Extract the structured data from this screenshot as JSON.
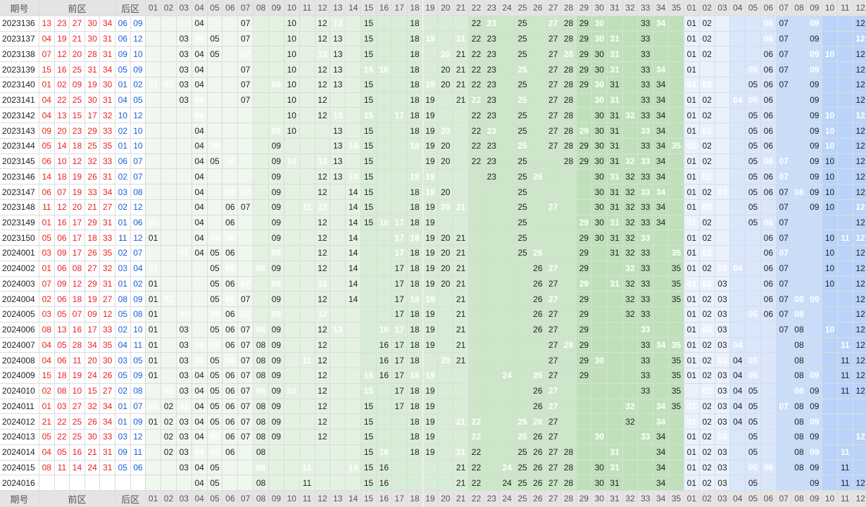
{
  "header": {
    "period": "期号",
    "front": "前区",
    "back": "后区"
  },
  "front_cols": [
    "01",
    "02",
    "03",
    "04",
    "05",
    "06",
    "07",
    "08",
    "09",
    "10",
    "11",
    "12",
    "13",
    "14",
    "15",
    "16",
    "17",
    "18",
    "19",
    "20",
    "21",
    "22",
    "23",
    "24",
    "25",
    "26",
    "27",
    "28",
    "29",
    "30",
    "31",
    "32",
    "33",
    "34",
    "35"
  ],
  "back_cols": [
    "01",
    "02",
    "03",
    "04",
    "05",
    "06",
    "07",
    "08",
    "09",
    "10",
    "11",
    "12"
  ],
  "rows": [
    {
      "p": "2023136",
      "f": [
        "13",
        "23",
        "27",
        "30",
        "34"
      ],
      "b": [
        "06",
        "09"
      ],
      "fs": [
        4,
        7,
        10,
        12,
        13,
        15,
        18,
        22,
        23,
        25,
        27,
        28,
        29,
        33
      ],
      "bs": [
        1,
        2,
        6,
        7,
        12
      ]
    },
    {
      "p": "2023137",
      "f": [
        "04",
        "19",
        "21",
        "30",
        "31"
      ],
      "b": [
        "06",
        "12"
      ],
      "fs": [
        3,
        4,
        5,
        7,
        10,
        12,
        13,
        15,
        18,
        22,
        23,
        25,
        27,
        28,
        29,
        30,
        33
      ],
      "bs": [
        1,
        2,
        6,
        7,
        9,
        12
      ]
    },
    {
      "p": "2023138",
      "f": [
        "07",
        "12",
        "20",
        "28",
        "31"
      ],
      "b": [
        "09",
        "10"
      ],
      "fs": [
        3,
        4,
        5,
        7,
        10,
        12,
        13,
        15,
        18,
        21,
        22,
        23,
        25,
        27,
        28,
        29,
        30,
        33
      ],
      "bs": [
        1,
        2,
        6,
        7,
        9,
        12
      ]
    },
    {
      "p": "2023139",
      "f": [
        "15",
        "16",
        "25",
        "31",
        "34"
      ],
      "b": [
        "05",
        "09"
      ],
      "fs": [
        3,
        4,
        7,
        10,
        12,
        13,
        15,
        18,
        20,
        21,
        22,
        23,
        25,
        27,
        28,
        29,
        30,
        31,
        33
      ],
      "bs": [
        1,
        6,
        7,
        9,
        12
      ]
    },
    {
      "p": "2023140",
      "f": [
        "01",
        "02",
        "09",
        "19",
        "30"
      ],
      "b": [
        "01",
        "02"
      ],
      "fs": [
        3,
        4,
        7,
        10,
        12,
        13,
        15,
        18,
        20,
        21,
        22,
        23,
        25,
        27,
        28,
        29,
        30,
        31,
        33,
        34
      ],
      "bs": [
        1,
        5,
        6,
        7,
        9,
        12
      ]
    },
    {
      "p": "2023141",
      "f": [
        "04",
        "22",
        "25",
        "30",
        "31"
      ],
      "b": [
        "04",
        "05"
      ],
      "fs": [
        3,
        4,
        7,
        10,
        12,
        15,
        18,
        19,
        21,
        22,
        23,
        25,
        27,
        28,
        30,
        31,
        33,
        34
      ],
      "bs": [
        1,
        2,
        5,
        6,
        9,
        12
      ]
    },
    {
      "p": "2023142",
      "f": [
        "04",
        "13",
        "15",
        "17",
        "32"
      ],
      "b": [
        "10",
        "12"
      ],
      "fs": [
        4,
        10,
        12,
        15,
        18,
        19,
        22,
        23,
        25,
        27,
        28,
        30,
        31,
        33,
        34
      ],
      "bs": [
        1,
        2,
        5,
        6,
        9,
        12
      ]
    },
    {
      "p": "2023143",
      "f": [
        "09",
        "20",
        "23",
        "29",
        "33"
      ],
      "b": [
        "02",
        "10"
      ],
      "fs": [
        4,
        10,
        13,
        15,
        18,
        19,
        22,
        25,
        27,
        28,
        30,
        31,
        33,
        34
      ],
      "bs": [
        1,
        5,
        6,
        9,
        10,
        12
      ]
    },
    {
      "p": "2023144",
      "f": [
        "05",
        "14",
        "18",
        "25",
        "35"
      ],
      "b": [
        "01",
        "10"
      ],
      "fs": [
        4,
        9,
        13,
        15,
        19,
        20,
        22,
        23,
        25,
        27,
        28,
        29,
        30,
        31,
        33,
        34
      ],
      "bs": [
        1,
        2,
        5,
        6,
        9,
        10,
        12
      ]
    },
    {
      "p": "2023145",
      "f": [
        "06",
        "10",
        "12",
        "32",
        "33"
      ],
      "b": [
        "06",
        "07"
      ],
      "fs": [
        4,
        5,
        9,
        13,
        15,
        19,
        20,
        22,
        23,
        25,
        28,
        29,
        30,
        31,
        34
      ],
      "bs": [
        1,
        2,
        5,
        6,
        9,
        10,
        12
      ]
    },
    {
      "p": "2023146",
      "f": [
        "14",
        "18",
        "19",
        "26",
        "31"
      ],
      "b": [
        "02",
        "07"
      ],
      "fs": [
        4,
        9,
        12,
        13,
        15,
        19,
        23,
        25,
        30,
        31,
        32,
        33,
        34
      ],
      "bs": [
        1,
        2,
        5,
        6,
        9,
        10,
        12
      ]
    },
    {
      "p": "2023147",
      "f": [
        "06",
        "07",
        "19",
        "33",
        "34"
      ],
      "b": [
        "03",
        "08"
      ],
      "fs": [
        4,
        9,
        12,
        14,
        15,
        18,
        19,
        20,
        25,
        30,
        31,
        32,
        33
      ],
      "bs": [
        1,
        2,
        5,
        6,
        7,
        9,
        10,
        12
      ]
    },
    {
      "p": "2023148",
      "f": [
        "11",
        "12",
        "20",
        "21",
        "27"
      ],
      "b": [
        "02",
        "12"
      ],
      "fs": [
        4,
        6,
        7,
        9,
        12,
        14,
        15,
        18,
        19,
        20,
        25,
        30,
        31,
        32,
        33,
        34
      ],
      "bs": [
        1,
        2,
        5,
        7,
        9,
        10
      ]
    },
    {
      "p": "2023149",
      "f": [
        "01",
        "16",
        "17",
        "29",
        "31"
      ],
      "b": [
        "01",
        "06"
      ],
      "fs": [
        4,
        6,
        9,
        12,
        14,
        15,
        18,
        19,
        25,
        30,
        31,
        32,
        33,
        34
      ],
      "bs": [
        1,
        2,
        5,
        7,
        12
      ]
    },
    {
      "p": "2023150",
      "f": [
        "05",
        "06",
        "17",
        "18",
        "33"
      ],
      "b": [
        "11",
        "12"
      ],
      "fs": [
        1,
        4,
        6,
        9,
        12,
        14,
        17,
        18,
        19,
        20,
        21,
        25,
        29,
        30,
        31,
        32,
        33
      ],
      "bs": [
        1,
        2,
        6,
        7,
        10,
        12
      ]
    },
    {
      "p": "2024001",
      "f": [
        "03",
        "09",
        "17",
        "26",
        "35"
      ],
      "b": [
        "02",
        "07"
      ],
      "fs": [
        4,
        5,
        6,
        9,
        12,
        14,
        17,
        18,
        19,
        20,
        21,
        25,
        29,
        31,
        32,
        33
      ],
      "bs": [
        1,
        2,
        6,
        7,
        10,
        12
      ]
    },
    {
      "p": "2024002",
      "f": [
        "01",
        "06",
        "08",
        "27",
        "32"
      ],
      "b": [
        "03",
        "04"
      ],
      "fs": [
        5,
        6,
        9,
        12,
        14,
        17,
        18,
        19,
        20,
        21,
        26,
        29,
        32,
        33,
        35
      ],
      "bs": [
        1,
        2,
        6,
        7,
        10,
        12
      ]
    },
    {
      "p": "2024003",
      "f": [
        "07",
        "09",
        "12",
        "29",
        "31"
      ],
      "b": [
        "01",
        "02"
      ],
      "fs": [
        1,
        5,
        6,
        9,
        12,
        14,
        17,
        18,
        19,
        20,
        21,
        26,
        27,
        29,
        32,
        33,
        35
      ],
      "bs": [
        1,
        2,
        3,
        6,
        7,
        10,
        12
      ]
    },
    {
      "p": "2024004",
      "f": [
        "02",
        "06",
        "18",
        "19",
        "27"
      ],
      "b": [
        "08",
        "09"
      ],
      "fs": [
        1,
        5,
        6,
        7,
        9,
        12,
        14,
        17,
        18,
        19,
        21,
        26,
        27,
        29,
        32,
        33,
        35
      ],
      "bs": [
        1,
        2,
        3,
        6,
        7,
        12
      ]
    },
    {
      "p": "2024005",
      "f": [
        "03",
        "05",
        "07",
        "09",
        "12"
      ],
      "b": [
        "05",
        "08"
      ],
      "fs": [
        1,
        6,
        7,
        9,
        12,
        17,
        18,
        19,
        21,
        26,
        27,
        29,
        32,
        33
      ],
      "bs": [
        1,
        2,
        3,
        6,
        7,
        8,
        12
      ]
    },
    {
      "p": "2024006",
      "f": [
        "08",
        "13",
        "16",
        "17",
        "33"
      ],
      "b": [
        "02",
        "10"
      ],
      "fs": [
        1,
        3,
        5,
        6,
        7,
        9,
        12,
        17,
        18,
        19,
        21,
        26,
        27,
        29,
        33
      ],
      "bs": [
        1,
        2,
        3,
        7,
        8,
        12
      ]
    },
    {
      "p": "2024007",
      "f": [
        "04",
        "05",
        "28",
        "34",
        "35"
      ],
      "b": [
        "04",
        "11"
      ],
      "fs": [
        1,
        3,
        5,
        6,
        7,
        8,
        9,
        12,
        16,
        17,
        18,
        19,
        21,
        27,
        29,
        33
      ],
      "bs": [
        1,
        2,
        3,
        8,
        12
      ]
    },
    {
      "p": "2024008",
      "f": [
        "04",
        "06",
        "11",
        "20",
        "30"
      ],
      "b": [
        "03",
        "05"
      ],
      "fs": [
        1,
        3,
        5,
        6,
        7,
        8,
        9,
        12,
        16,
        17,
        18,
        21,
        27,
        29,
        33,
        35
      ],
      "bs": [
        1,
        2,
        4,
        8,
        11,
        12
      ]
    },
    {
      "p": "2024009",
      "f": [
        "15",
        "18",
        "19",
        "24",
        "26"
      ],
      "b": [
        "05",
        "09"
      ],
      "fs": [
        1,
        3,
        4,
        5,
        6,
        7,
        8,
        9,
        12,
        16,
        17,
        18,
        27,
        29,
        33,
        35
      ],
      "bs": [
        1,
        2,
        3,
        4,
        5,
        8,
        11,
        12
      ]
    },
    {
      "p": "2024010",
      "f": [
        "02",
        "08",
        "10",
        "15",
        "27"
      ],
      "b": [
        "02",
        "08"
      ],
      "fs": [
        3,
        4,
        5,
        6,
        7,
        8,
        9,
        12,
        17,
        18,
        19,
        26,
        27,
        33,
        35
      ],
      "bs": [
        2,
        3,
        4,
        5,
        8,
        9,
        11,
        12
      ]
    },
    {
      "p": "2024011",
      "f": [
        "01",
        "03",
        "27",
        "32",
        "34"
      ],
      "b": [
        "01",
        "07"
      ],
      "fs": [
        2,
        3,
        4,
        5,
        6,
        7,
        8,
        9,
        12,
        15,
        17,
        18,
        19,
        26,
        27,
        35
      ],
      "bs": [
        2,
        3,
        4,
        5,
        8,
        9
      ]
    },
    {
      "p": "2024012",
      "f": [
        "21",
        "22",
        "25",
        "26",
        "34"
      ],
      "b": [
        "01",
        "09"
      ],
      "fs": [
        1,
        2,
        3,
        4,
        5,
        6,
        7,
        8,
        9,
        12,
        15,
        18,
        19,
        25,
        27,
        32,
        34
      ],
      "bs": [
        1,
        2,
        3,
        4,
        5,
        8,
        9
      ]
    },
    {
      "p": "2024013",
      "f": [
        "05",
        "22",
        "25",
        "30",
        "33"
      ],
      "b": [
        "03",
        "12"
      ],
      "fs": [
        2,
        3,
        4,
        5,
        6,
        7,
        8,
        9,
        12,
        15,
        18,
        19,
        26,
        27,
        34
      ],
      "bs": [
        1,
        2,
        3,
        5,
        8,
        9
      ]
    },
    {
      "p": "2024014",
      "f": [
        "04",
        "05",
        "16",
        "21",
        "31"
      ],
      "b": [
        "09",
        "11"
      ],
      "fs": [
        2,
        3,
        4,
        5,
        6,
        8,
        15,
        18,
        19,
        22,
        25,
        26,
        27,
        28,
        34
      ],
      "bs": [
        1,
        2,
        3,
        5,
        8,
        9
      ]
    },
    {
      "p": "2024015",
      "f": [
        "08",
        "11",
        "14",
        "24",
        "31"
      ],
      "b": [
        "05",
        "06"
      ],
      "fs": [
        3,
        4,
        5,
        8,
        15,
        16,
        21,
        22,
        25,
        26,
        27,
        28,
        30,
        34
      ],
      "bs": [
        1,
        2,
        3,
        5,
        8,
        9,
        11
      ]
    },
    {
      "p": "2024016",
      "f": [],
      "b": [],
      "fs": [
        4,
        5,
        8,
        11,
        15,
        16,
        21,
        22,
        24,
        25,
        26,
        27,
        28,
        30,
        31,
        34
      ],
      "bs": [
        1,
        2,
        3,
        5,
        9,
        11,
        12
      ]
    }
  ],
  "colors": {
    "header_bg": "#e4e4e4",
    "front_red": "#e8231f",
    "back_blue": "#1a5fd6",
    "hit_green": "#3fa34d",
    "hit_blue": "#2466e8"
  }
}
